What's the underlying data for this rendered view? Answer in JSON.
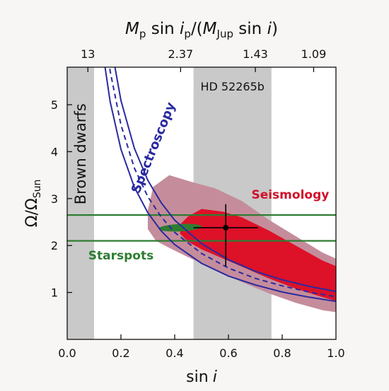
{
  "chart_data": {
    "type": "scatter",
    "xlabel_base": "sin",
    "xlabel_var": "i",
    "ylabel_base": "Ω/Ω",
    "ylabel_sub": "Sun",
    "top_axis": {
      "label_parts": [
        "M",
        "p",
        " sin ",
        "i",
        "p",
        "/(",
        "M",
        "Jup",
        " sin ",
        "i",
        ")"
      ],
      "ticks": [
        {
          "label": "13",
          "x": 0.077
        },
        {
          "label": "2.37",
          "x": 0.422
        },
        {
          "label": "1.43",
          "x": 0.7
        },
        {
          "label": "1.09",
          "x": 0.917
        }
      ]
    },
    "xlim": [
      0.0,
      1.0
    ],
    "ylim": [
      0.0,
      5.8
    ],
    "xticks": [
      {
        "value": 0.0,
        "label": "0.0"
      },
      {
        "value": 0.2,
        "label": "0.2"
      },
      {
        "value": 0.4,
        "label": "0.4"
      },
      {
        "value": 0.6,
        "label": "0.6"
      },
      {
        "value": 0.8,
        "label": "0.8"
      },
      {
        "value": 1.0,
        "label": "1.0"
      }
    ],
    "yticks": [
      {
        "value": 1,
        "label": "1"
      },
      {
        "value": 2,
        "label": "2"
      },
      {
        "value": 3,
        "label": "3"
      },
      {
        "value": 4,
        "label": "4"
      },
      {
        "value": 5,
        "label": "5"
      }
    ],
    "shaded_bands": [
      {
        "name": "brown-dwarfs",
        "label": "Brown dwarfs",
        "x_range": [
          0.0,
          0.1
        ],
        "color": "#c9c9c9"
      },
      {
        "name": "hd52265b",
        "label": "HD 52265b",
        "x_range": [
          0.47,
          0.76
        ],
        "color": "#c9c9c9"
      }
    ],
    "spectroscopy": {
      "label": "Spectroscopy",
      "color": "#2a2aa0",
      "x": [
        0.13,
        0.16,
        0.2,
        0.25,
        0.3,
        0.35,
        0.4,
        0.5,
        0.6,
        0.7,
        0.8,
        0.9,
        1.0
      ],
      "central": [
        7.02,
        5.71,
        4.57,
        3.65,
        3.04,
        2.61,
        2.28,
        1.83,
        1.52,
        1.3,
        1.14,
        1.01,
        0.91
      ],
      "lower": [
        6.22,
        5.06,
        4.05,
        3.24,
        2.7,
        2.31,
        2.02,
        1.62,
        1.35,
        1.16,
        1.01,
        0.9,
        0.81
      ],
      "upper": [
        7.82,
        6.36,
        5.09,
        4.07,
        3.39,
        2.91,
        2.54,
        2.04,
        1.7,
        1.45,
        1.27,
        1.13,
        1.02
      ]
    },
    "seismology": {
      "label": "Seismology",
      "outer_color": "#c58d9c",
      "inner_color": "#dd1128",
      "outer": [
        [
          0.3,
          2.35
        ],
        [
          0.3,
          2.75
        ],
        [
          0.32,
          3.25
        ],
        [
          0.38,
          3.5
        ],
        [
          0.46,
          3.36
        ],
        [
          0.55,
          3.22
        ],
        [
          0.65,
          2.95
        ],
        [
          0.75,
          2.55
        ],
        [
          0.85,
          2.2
        ],
        [
          0.95,
          1.85
        ],
        [
          1.0,
          1.72
        ],
        [
          1.0,
          0.58
        ],
        [
          0.95,
          0.62
        ],
        [
          0.85,
          0.78
        ],
        [
          0.75,
          0.98
        ],
        [
          0.65,
          1.22
        ],
        [
          0.55,
          1.48
        ],
        [
          0.45,
          1.75
        ],
        [
          0.38,
          1.95
        ],
        [
          0.33,
          2.1
        ]
      ],
      "inner": [
        [
          0.42,
          2.45
        ],
        [
          0.45,
          2.62
        ],
        [
          0.5,
          2.78
        ],
        [
          0.58,
          2.72
        ],
        [
          0.65,
          2.6
        ],
        [
          0.75,
          2.32
        ],
        [
          0.85,
          2.0
        ],
        [
          0.95,
          1.68
        ],
        [
          1.0,
          1.56
        ],
        [
          1.0,
          0.82
        ],
        [
          0.95,
          0.9
        ],
        [
          0.85,
          1.08
        ],
        [
          0.75,
          1.3
        ],
        [
          0.65,
          1.55
        ],
        [
          0.58,
          1.72
        ],
        [
          0.5,
          1.92
        ],
        [
          0.45,
          2.08
        ],
        [
          0.42,
          2.25
        ]
      ]
    },
    "starspots": {
      "label": "Starspots",
      "color": "#2e7d32",
      "y_lower": 2.1,
      "y_upper": 2.65,
      "ellipse": {
        "cx": 0.42,
        "cy": 2.38,
        "rx": 0.08,
        "ry": 0.08
      }
    },
    "best_fit": {
      "x": 0.59,
      "y": 2.38,
      "x_err": [
        0.12,
        0.12
      ],
      "y_err": [
        0.82,
        0.5
      ]
    }
  }
}
